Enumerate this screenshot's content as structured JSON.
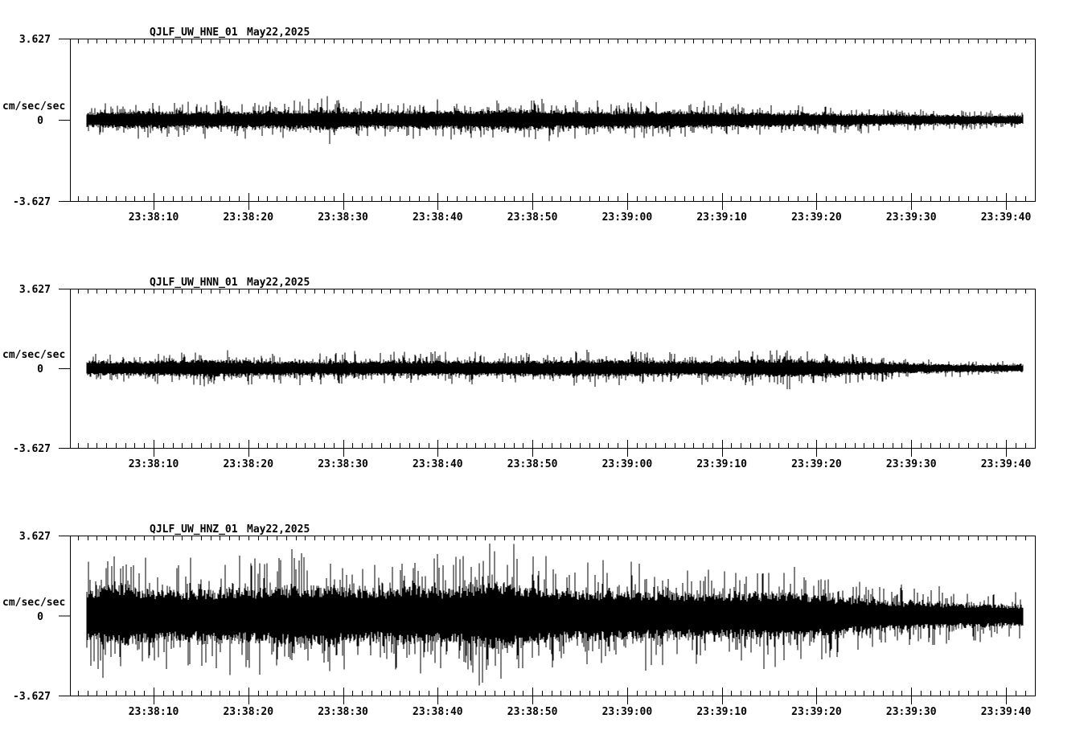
{
  "colors": {
    "background": "#ffffff",
    "trace": "#000000"
  },
  "chart_data": [
    {
      "type": "line",
      "title": "QJLF_UW_HNE_01",
      "date": "May22,2025",
      "ylabel": "cm/sec/sec",
      "ylim": [
        -3.627,
        3.627
      ],
      "y_tick_labels": [
        "3.627",
        "0",
        "-3.627"
      ],
      "baseline_value": 0,
      "x_ticks": [
        "23:38:10",
        "23:38:20",
        "23:38:30",
        "23:38:40",
        "23:38:50",
        "23:39:00",
        "23:39:10",
        "23:39:20",
        "23:39:30",
        "23:39:40"
      ],
      "x_minor_tick_seconds": 1,
      "x_major_tick_seconds": 10,
      "x_range_seconds_after_23_38": [
        2,
        102
      ],
      "envelope_t_seconds_after_23_38": [
        3,
        8,
        14,
        20,
        26,
        28,
        32,
        38,
        44,
        48,
        52,
        58,
        64,
        70,
        76,
        82,
        88,
        94,
        102
      ],
      "envelope_amplitude_cm_s2": [
        0.72,
        0.9,
        0.83,
        0.86,
        0.93,
        1.08,
        0.86,
        0.93,
        0.9,
        1.08,
        0.93,
        0.86,
        0.9,
        0.79,
        0.72,
        0.65,
        0.57,
        0.5,
        0.43
      ],
      "core_band_ratio": 0.32,
      "grid": false,
      "legend": false
    },
    {
      "type": "line",
      "title": "QJLF_UW_HNN_01",
      "date": "May22,2025",
      "ylabel": "cm/sec/sec",
      "ylim": [
        -3.627,
        3.627
      ],
      "y_tick_labels": [
        "3.627",
        "0",
        "-3.627"
      ],
      "baseline_value": 0,
      "x_ticks": [
        "23:38:10",
        "23:38:20",
        "23:38:30",
        "23:38:40",
        "23:38:50",
        "23:39:00",
        "23:39:10",
        "23:39:20",
        "23:39:30",
        "23:39:40"
      ],
      "x_minor_tick_seconds": 1,
      "x_major_tick_seconds": 10,
      "x_range_seconds_after_23_38": [
        2,
        102
      ],
      "envelope_t_seconds_after_23_38": [
        3,
        8,
        15,
        22,
        30,
        38,
        46,
        52,
        58,
        64,
        70,
        77,
        82,
        88,
        94,
        102
      ],
      "envelope_amplitude_cm_s2": [
        0.79,
        0.72,
        0.9,
        0.72,
        0.75,
        0.79,
        0.75,
        0.79,
        0.9,
        0.75,
        0.79,
        0.93,
        0.79,
        0.57,
        0.43,
        0.36
      ],
      "core_band_ratio": 0.32,
      "grid": false,
      "legend": false
    },
    {
      "type": "line",
      "title": "QJLF_UW_HNZ_01",
      "date": "May22,2025",
      "ylabel": "cm/sec/sec",
      "ylim": [
        -3.627,
        3.627
      ],
      "y_tick_labels": [
        "3.627",
        "0",
        "-3.627"
      ],
      "baseline_value": 0,
      "x_ticks": [
        "23:38:10",
        "23:38:20",
        "23:38:30",
        "23:38:40",
        "23:38:50",
        "23:39:00",
        "23:39:10",
        "23:39:20",
        "23:39:30",
        "23:39:40"
      ],
      "x_minor_tick_seconds": 1,
      "x_major_tick_seconds": 10,
      "x_range_seconds_after_23_38": [
        2,
        102
      ],
      "envelope_t_seconds_after_23_38": [
        3,
        6,
        10,
        16,
        22,
        28,
        34,
        37,
        40,
        44,
        47,
        50,
        54,
        58,
        64,
        70,
        77,
        82,
        88,
        94,
        102
      ],
      "envelope_amplitude_cm_s2": [
        2.51,
        3.23,
        2.69,
        2.59,
        2.87,
        3.05,
        2.59,
        3.16,
        2.69,
        3.23,
        3.48,
        2.8,
        2.59,
        2.51,
        2.33,
        2.23,
        2.44,
        1.97,
        1.51,
        1.29,
        1.08
      ],
      "core_band_ratio": 0.32,
      "grid": false,
      "legend": false
    }
  ]
}
